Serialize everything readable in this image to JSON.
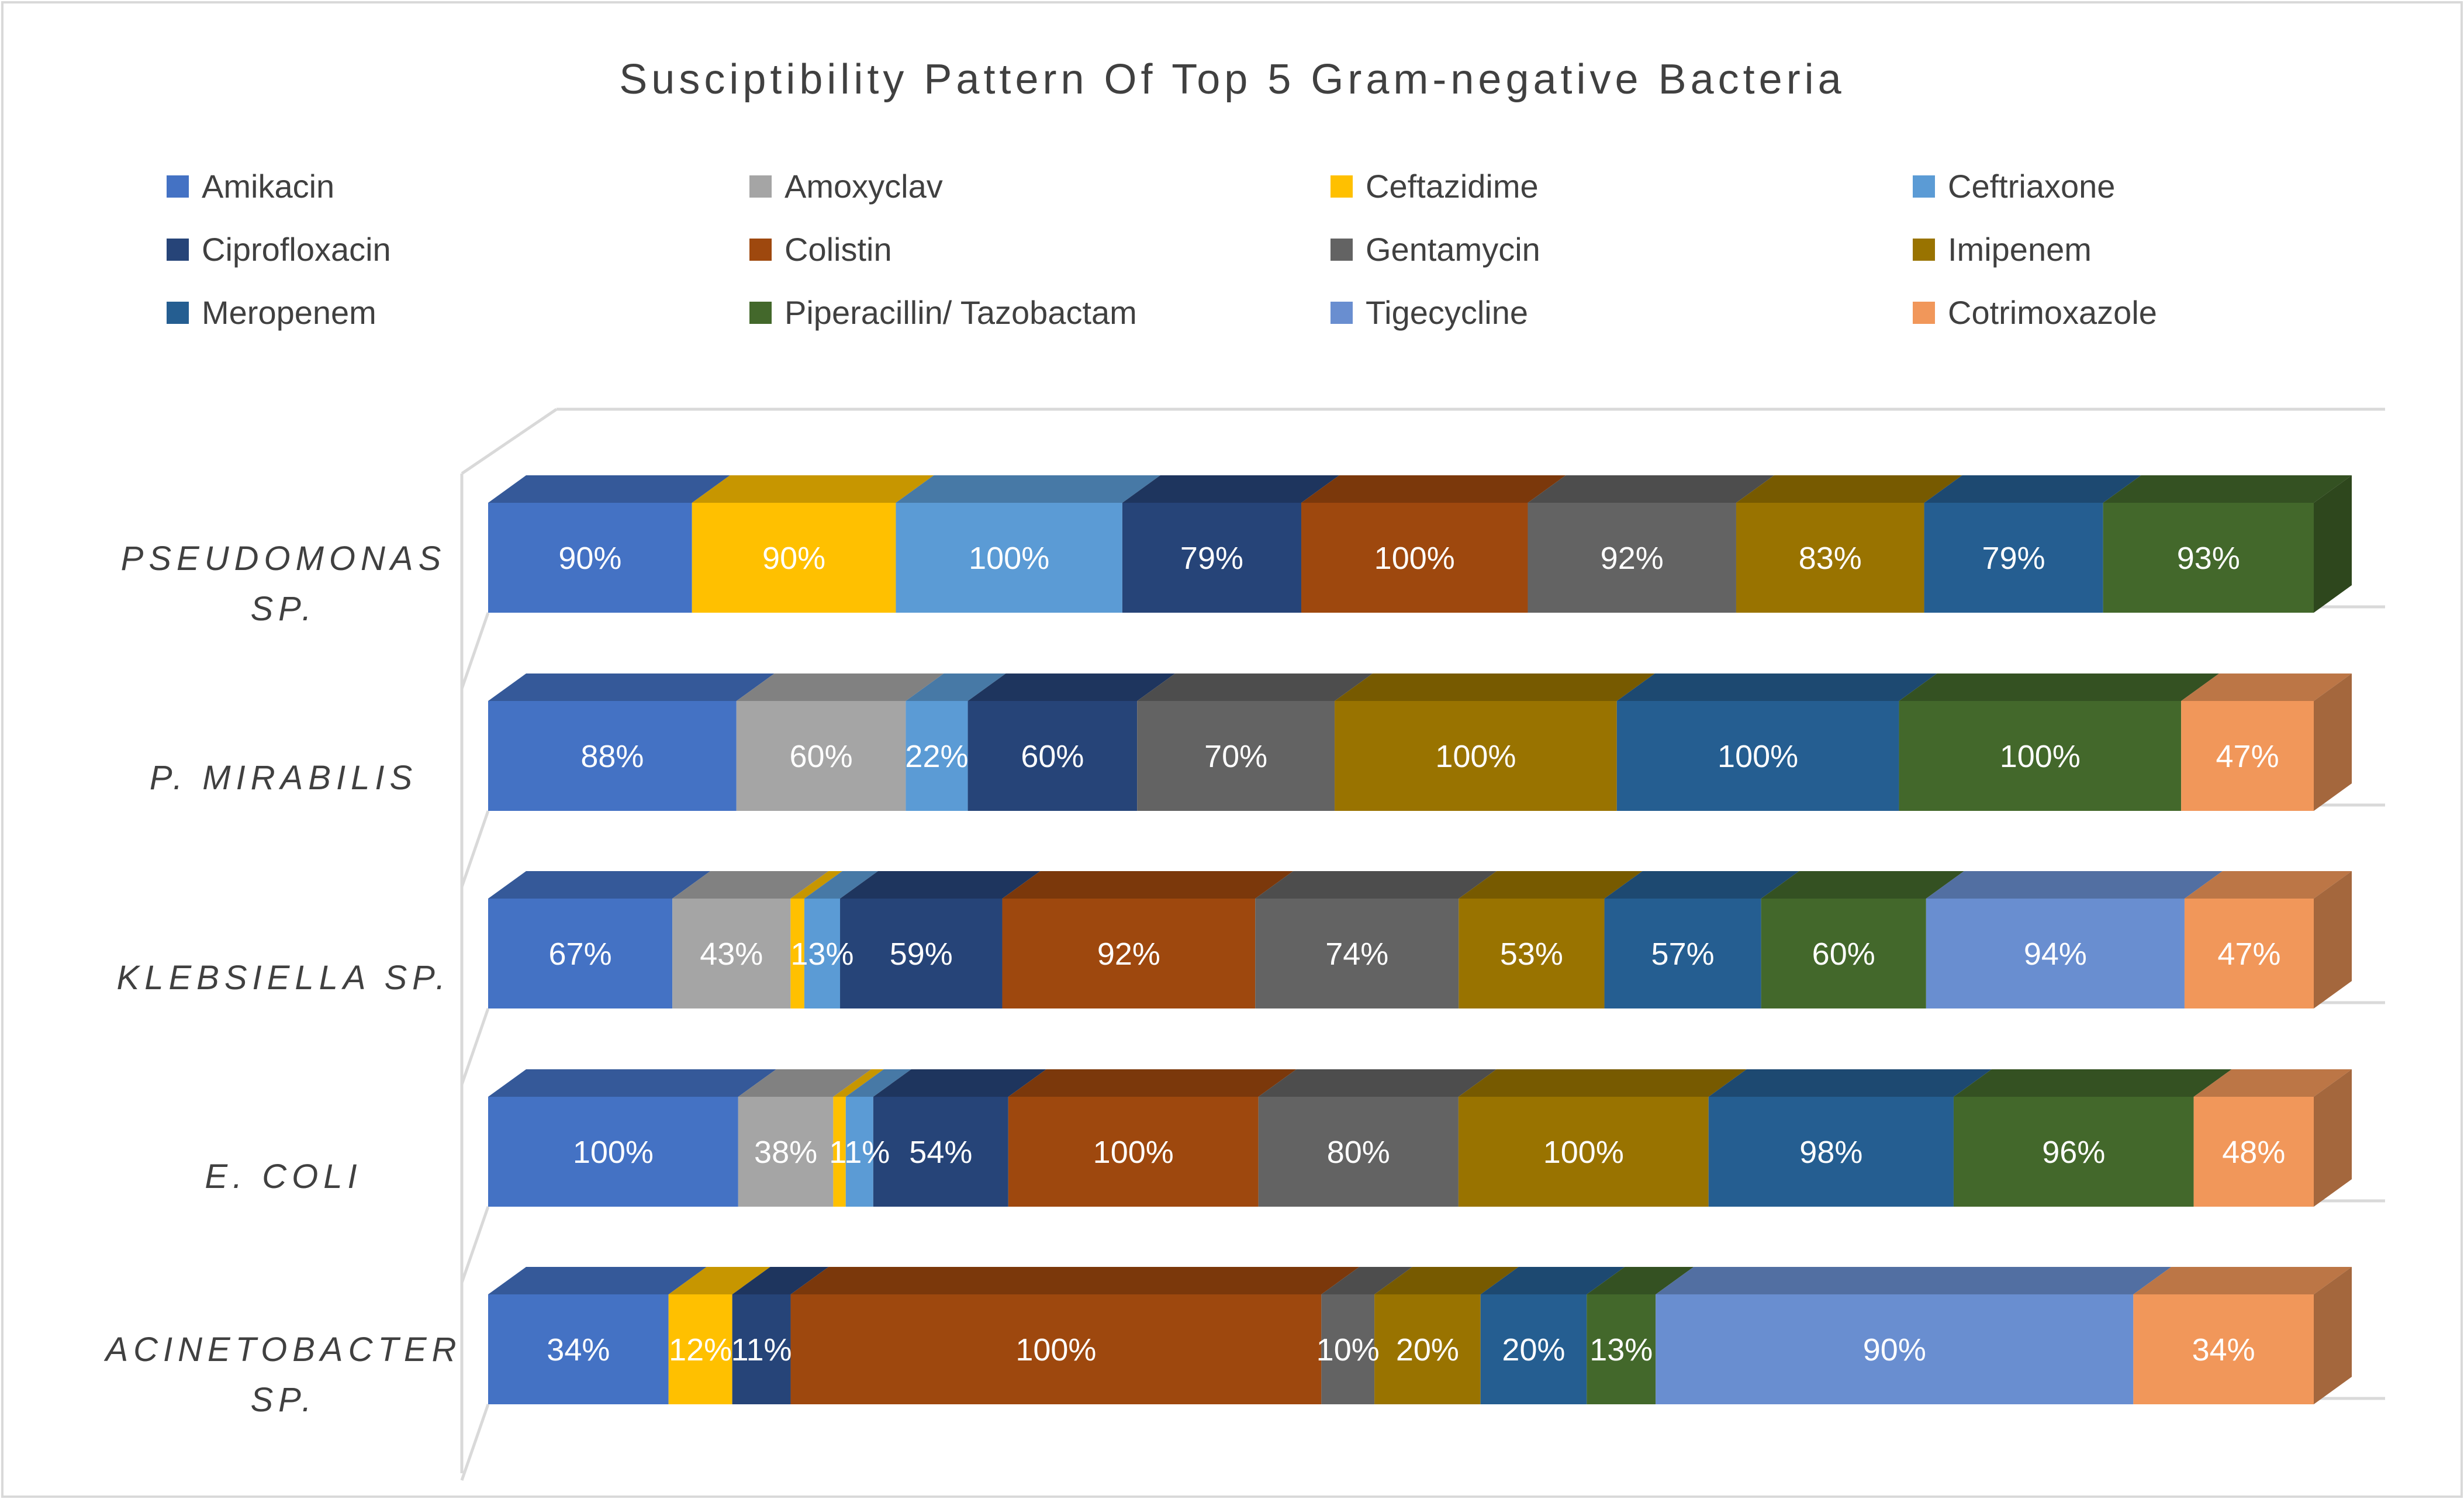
{
  "chart_data": {
    "type": "bar",
    "orientation": "horizontal",
    "stacked": "100%",
    "style": "3d",
    "title": "Susciptibility Pattern Of Top 5 Gram-negative Bacteria",
    "legend_position": "top",
    "xlabel": "",
    "ylabel": "",
    "categories": [
      [
        "PSEUDOMONAS",
        "SP."
      ],
      [
        "P. MIRABILIS"
      ],
      [
        "KLEBSIELLA SP."
      ],
      [
        "E. COLI"
      ],
      [
        "ACINETOBACTER",
        "SP."
      ]
    ],
    "series": [
      {
        "name": "Amikacin",
        "color": "#4472C4",
        "values": [
          90,
          88,
          67,
          100,
          34
        ]
      },
      {
        "name": "Amoxyclav",
        "color": "#A5A5A5",
        "values": [
          null,
          60,
          43,
          38,
          null
        ]
      },
      {
        "name": "Ceftazidime",
        "color": "#FFC000",
        "values": [
          90,
          null,
          5,
          5,
          12
        ]
      },
      {
        "name": "Ceftriaxone",
        "color": "#5B9BD5",
        "values": [
          100,
          22,
          13,
          11,
          null
        ]
      },
      {
        "name": "Ciprofloxacin",
        "color": "#264478",
        "values": [
          79,
          60,
          59,
          54,
          11
        ]
      },
      {
        "name": "Colistin",
        "color": "#9E480E",
        "values": [
          100,
          null,
          92,
          100,
          100
        ]
      },
      {
        "name": "Gentamycin",
        "color": "#636363",
        "values": [
          92,
          70,
          74,
          80,
          10
        ]
      },
      {
        "name": "Imipenem",
        "color": "#997300",
        "values": [
          83,
          100,
          53,
          100,
          20
        ]
      },
      {
        "name": "Meropenem",
        "color": "#255E91",
        "values": [
          79,
          100,
          57,
          98,
          20
        ]
      },
      {
        "name": "Piperacillin/ Tazobactam",
        "color": "#43682B",
        "values": [
          93,
          100,
          60,
          96,
          13
        ]
      },
      {
        "name": "Tigecycline",
        "color": "#698ED0",
        "values": [
          null,
          null,
          94,
          null,
          90
        ]
      },
      {
        "name": "Cotrimoxazole",
        "color": "#F1975A",
        "values": [
          null,
          47,
          47,
          48,
          34
        ]
      }
    ],
    "labels": [
      [
        "90%",
        "",
        "90%",
        "100%",
        "79%",
        "100%",
        "92%",
        "83%",
        "79%",
        "93%",
        "",
        ""
      ],
      [
        "88%",
        "60%",
        "",
        "22%",
        "60%",
        "",
        "70%",
        "100%",
        "100%",
        "100%",
        "",
        "47%"
      ],
      [
        "67%",
        "43%",
        "",
        "13%",
        "59%",
        "92%",
        "74%",
        "53%",
        "57%",
        "60%",
        "94%",
        "47%"
      ],
      [
        "100%",
        "38%",
        "",
        "11%",
        "54%",
        "100%",
        "80%",
        "100%",
        "98%",
        "96%",
        "",
        "48%"
      ],
      [
        "34%",
        "",
        "12%",
        "",
        "11%",
        "100%",
        "10%",
        "20%",
        "20%",
        "13%",
        "90%",
        "34%"
      ]
    ]
  }
}
